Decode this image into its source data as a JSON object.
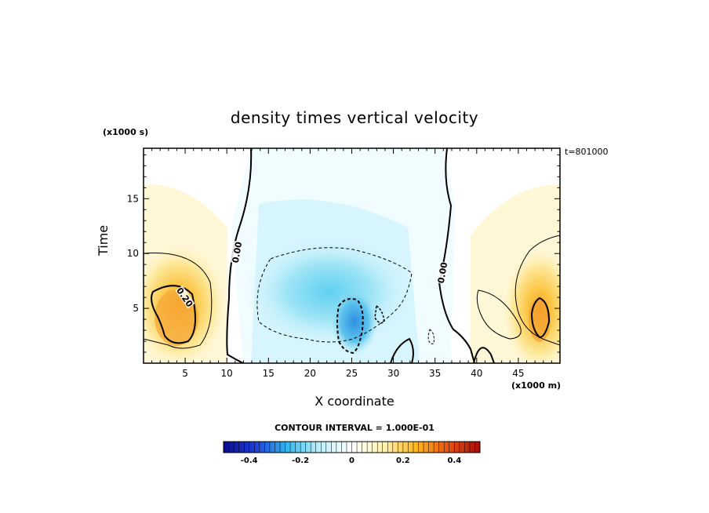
{
  "chart_data": {
    "type": "heatmap",
    "title": "density times vertical velocity",
    "xlabel": "X coordinate",
    "ylabel": "Time",
    "x_scale_label": "(x1000 m)",
    "y_scale_label": "(x1000 s)",
    "time_stamp": "t=801000",
    "xlim": [
      0,
      50
    ],
    "ylim": [
      0,
      19.6
    ],
    "x_ticks": [
      "5",
      "10",
      "15",
      "20",
      "25",
      "30",
      "35",
      "40",
      "45"
    ],
    "y_ticks": [
      "5",
      "10",
      "15"
    ],
    "contour_interval_text": "CONTOUR INTERVAL = 1.000E-01",
    "contour_labels": [
      "0.00",
      "0.20",
      "0.00"
    ],
    "colorbar": {
      "range": [
        -0.5,
        0.5
      ],
      "tick_labels": [
        "-0.4",
        "-0.2",
        "0",
        "0.2",
        "0.4"
      ],
      "tick_values": [
        -0.4,
        -0.2,
        0,
        0.2,
        0.4
      ],
      "colors": [
        "#0a0a8c",
        "#1e40d8",
        "#33b9f0",
        "#bff0fc",
        "#ffffff",
        "#fff2b0",
        "#ffb820",
        "#e85510",
        "#a80a0a"
      ]
    },
    "features": [
      {
        "kind": "updraft",
        "x_center": 4,
        "y_center": 4.5,
        "peak": 0.33
      },
      {
        "kind": "updraft",
        "x_center": 47.5,
        "y_center": 4,
        "peak": 0.28
      },
      {
        "kind": "downdraft",
        "x_center": 20,
        "y_center": 7,
        "peak": -0.12
      },
      {
        "kind": "downdraft",
        "x_center": 25.5,
        "y_center": 3.5,
        "peak": -0.28
      }
    ]
  }
}
